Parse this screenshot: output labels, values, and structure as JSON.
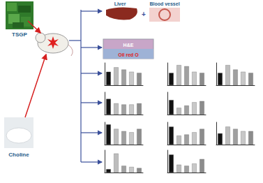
{
  "diagram": {
    "inputs": [
      {
        "label": "TSGP"
      },
      {
        "label": "Choline"
      }
    ],
    "organs": [
      {
        "label": "Liver"
      },
      {
        "label": "Blood vessel"
      }
    ],
    "joiner": "+",
    "staining": [
      {
        "label": "H&E"
      },
      {
        "label": "Oil red O"
      }
    ]
  },
  "chart_data": [
    {
      "type": "bar",
      "categories": [
        null,
        null,
        null,
        null,
        null
      ],
      "values": [
        60,
        80,
        70,
        60,
        55
      ],
      "colors": [
        "#111111",
        "#bdbdbd",
        "#a0a0a0",
        "#c8c8c8",
        "#8c8c8c"
      ],
      "ylim": [
        0,
        100
      ],
      "tick_labels": false
    },
    {
      "type": "bar",
      "categories": [
        null,
        null,
        null,
        null,
        null
      ],
      "values": [
        55,
        90,
        85,
        60,
        55
      ],
      "colors": [
        "#111111",
        "#bdbdbd",
        "#a0a0a0",
        "#c8c8c8",
        "#8c8c8c"
      ],
      "ylim": [
        0,
        100
      ],
      "tick_labels": false
    },
    {
      "type": "bar",
      "categories": [
        null,
        null,
        null,
        null,
        null
      ],
      "values": [
        55,
        90,
        70,
        60,
        55
      ],
      "colors": [
        "#111111",
        "#bdbdbd",
        "#a0a0a0",
        "#c8c8c8",
        "#8c8c8c"
      ],
      "ylim": [
        0,
        100
      ],
      "tick_labels": false
    },
    {
      "type": "bar",
      "categories": [
        null,
        null,
        null,
        null,
        null
      ],
      "values": [
        70,
        50,
        45,
        45,
        50
      ],
      "colors": [
        "#111111",
        "#bdbdbd",
        "#a0a0a0",
        "#c8c8c8",
        "#8c8c8c"
      ],
      "ylim": [
        0,
        100
      ],
      "tick_labels": false
    },
    {
      "type": "bar",
      "categories": [
        null,
        null,
        null,
        null,
        null
      ],
      "values": [
        65,
        30,
        40,
        55,
        60
      ],
      "colors": [
        "#111111",
        "#bdbdbd",
        "#a0a0a0",
        "#c8c8c8",
        "#8c8c8c"
      ],
      "ylim": [
        0,
        100
      ],
      "tick_labels": false
    },
    {
      "type": "bar",
      "categories": [
        null,
        null,
        null,
        null,
        null
      ],
      "values": [
        90,
        70,
        60,
        55,
        70
      ],
      "colors": [
        "#111111",
        "#bdbdbd",
        "#a0a0a0",
        "#c8c8c8",
        "#8c8c8c"
      ],
      "ylim": [
        0,
        100
      ],
      "tick_labels": false
    },
    {
      "type": "bar",
      "categories": [
        null,
        null,
        null,
        null,
        null
      ],
      "values": [
        80,
        40,
        45,
        55,
        70
      ],
      "colors": [
        "#111111",
        "#bdbdbd",
        "#a0a0a0",
        "#c8c8c8",
        "#8c8c8c"
      ],
      "ylim": [
        0,
        100
      ],
      "tick_labels": false
    },
    {
      "type": "bar",
      "categories": [
        null,
        null,
        null,
        null,
        null
      ],
      "values": [
        50,
        80,
        70,
        60,
        60
      ],
      "colors": [
        "#111111",
        "#bdbdbd",
        "#a0a0a0",
        "#c8c8c8",
        "#8c8c8c"
      ],
      "ylim": [
        0,
        100
      ],
      "tick_labels": false
    },
    {
      "type": "bar",
      "categories": [
        null,
        null,
        null,
        null,
        null
      ],
      "values": [
        15,
        85,
        30,
        25,
        20
      ],
      "colors": [
        "#111111",
        "#bdbdbd",
        "#a0a0a0",
        "#c8c8c8",
        "#8c8c8c"
      ],
      "ylim": [
        0,
        100
      ],
      "tick_labels": false
    },
    {
      "type": "bar",
      "categories": [
        null,
        null,
        null,
        null,
        null
      ],
      "values": [
        80,
        35,
        30,
        40,
        60
      ],
      "colors": [
        "#111111",
        "#bdbdbd",
        "#a0a0a0",
        "#c8c8c8",
        "#8c8c8c"
      ],
      "ylim": [
        0,
        100
      ],
      "tick_labels": false
    }
  ]
}
